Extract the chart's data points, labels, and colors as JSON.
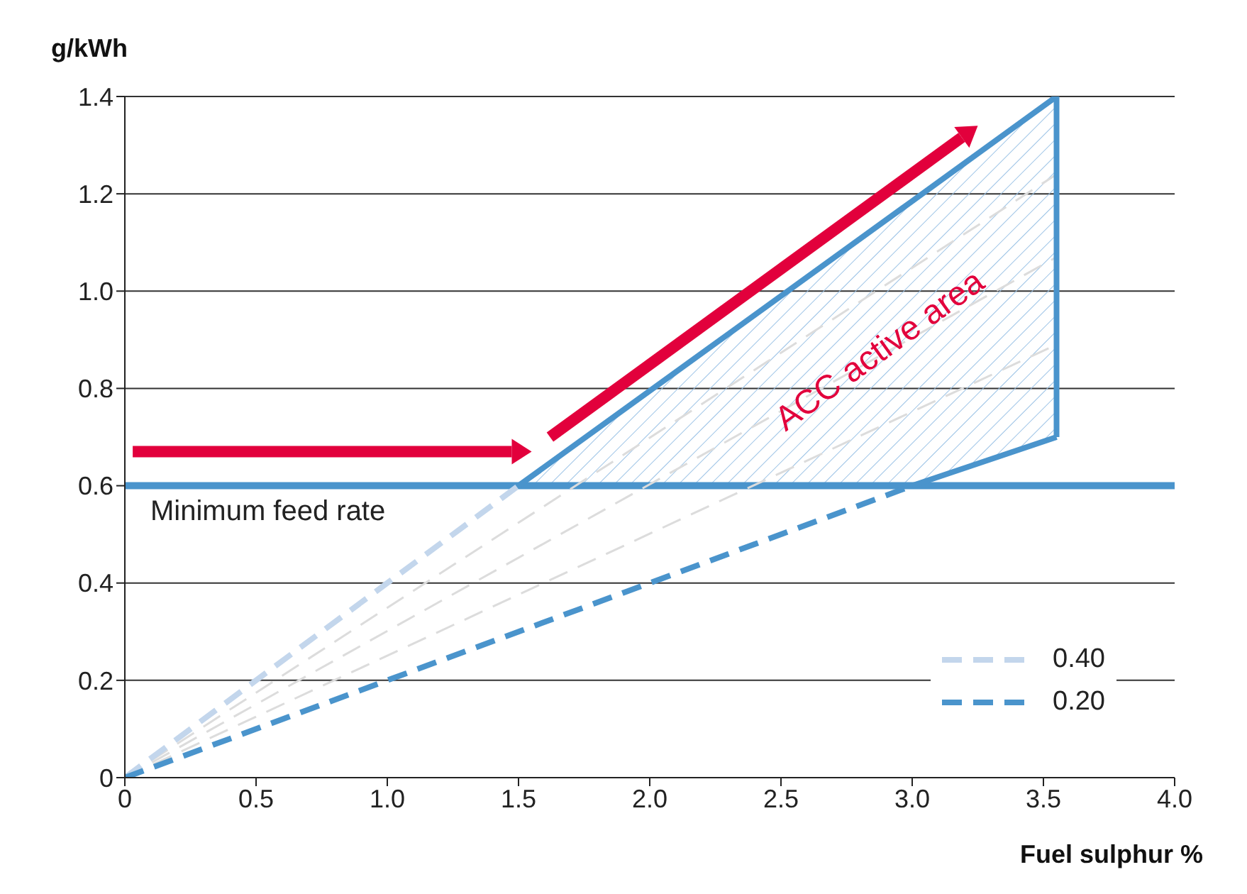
{
  "chart_data": {
    "type": "line",
    "xlabel": "Fuel sulphur %",
    "ylabel": "g/kWh",
    "xlim": [
      0,
      4
    ],
    "xticks": [
      0,
      0.5,
      {
        "value": 1,
        "label": "1.0"
      },
      1.5,
      {
        "value": 2,
        "label": "2.0"
      },
      2.5,
      {
        "value": 3,
        "label": "3.0"
      },
      3.5,
      {
        "value": 4,
        "label": "4.0"
      }
    ],
    "ylim": [
      0,
      1.4
    ],
    "yticks": [
      0,
      0.2,
      0.4,
      0.6,
      0.8,
      {
        "value": 1,
        "label": "1.0"
      },
      1.2,
      1.4
    ],
    "grid": "y",
    "legend": "bottom right",
    "marker": "none",
    "series": [
      {
        "color": "#dcdcdc",
        "line_style": "dashed",
        "x": [
          0,
          3.55
        ],
        "values": [
          0,
          1.24
        ]
      },
      {
        "color": "#dcdcdc",
        "line_style": "dashed",
        "x": [
          0,
          3.55
        ],
        "values": [
          0,
          1.07
        ]
      },
      {
        "color": "#dcdcdc",
        "line_style": "dashed",
        "x": [
          0,
          3.55
        ],
        "values": [
          0,
          0.89
        ]
      },
      {
        "name": "0.40",
        "color": "#c3d6ec",
        "line_style": "dashed",
        "x": [
          0,
          1.5
        ],
        "values": [
          0,
          0.6
        ]
      },
      {
        "name": "0.20",
        "color": "#4a94cc",
        "line_style": "dashed",
        "x": [
          0,
          3.0
        ],
        "values": [
          0,
          0.6
        ]
      },
      {
        "color": "#4a94cc",
        "line_style": "solid",
        "x": [
          1.5,
          3.0,
          3.55
        ],
        "values": [
          0.6,
          1.185,
          1.4
        ],
        "lower": [
          0.6,
          0.6,
          0.7
        ],
        "upper": [
          0.6,
          1.185,
          1.4
        ]
      },
      {
        "color": "#4a94cc",
        "line_style": "solid",
        "x": [
          3.0,
          3.55
        ],
        "values": [
          0.6,
          0.7
        ]
      },
      {
        "color": "#4a94cc",
        "line_style": "solid",
        "x": [
          3.55,
          3.55
        ],
        "values": [
          0.7,
          1.4
        ]
      }
    ],
    "ref_lines": [
      {
        "axis": "y",
        "value": 0.6,
        "label": "Minimum feed rate",
        "color": "#4a94cc"
      }
    ],
    "annotations": [
      "ACC active area"
    ]
  }
}
